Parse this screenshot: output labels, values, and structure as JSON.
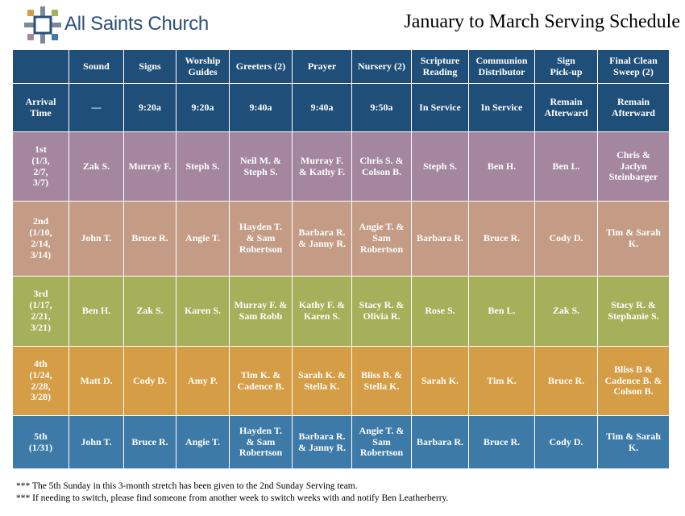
{
  "header": {
    "church_name": "All Saints Church",
    "title": "January to March Serving Schedule"
  },
  "schedule": {
    "columns": [
      "",
      "Sound",
      "Signs",
      "Worship\nGuides",
      "Greeters (2)",
      "Prayer",
      "Nursery (2)",
      "Scripture\nReading",
      "Communion\nDistributor",
      "Sign\nPick-up",
      "Final Clean\nSweep (2)"
    ],
    "arrival": [
      "Arrival\nTime",
      "—",
      "9:20a",
      "9:20a",
      "9:40a",
      "9:40a",
      "9:50a",
      "In Service",
      "In Service",
      "Remain\nAfterward",
      "Remain\nAfterward"
    ],
    "weeks": [
      [
        "1st\n(1/3,\n2/7,\n3/7)",
        "Zak S.",
        "Murray F.",
        "Steph S.",
        "Neil M. &\nSteph S.",
        "Murray F.\n& Kathy F.",
        "Chris S. &\nColson B.",
        "Steph S.",
        "Ben H.",
        "Ben L.",
        "Chris &\nJaclyn\nSteinbarger"
      ],
      [
        "2nd\n(1/10,\n2/14,\n3/14)",
        "John T.",
        "Bruce R.",
        "Angie T.",
        "Hayden T.\n& Sam\nRobertson",
        "Barbara R.\n& Janny R.",
        "Angie T. &\nSam\nRobertson",
        "Barbara R.",
        "Bruce R.",
        "Cody D.",
        "Tim & Sarah\nK."
      ],
      [
        "3rd\n(1/17,\n2/21,\n3/21)",
        "Ben H.",
        "Zak S.",
        "Karen S.",
        "Murray F. &\nSam Robb",
        "Kathy F. &\nKaren S.",
        "Stacy R. &\nOlivia R.",
        "Rose S.",
        "Ben L.",
        "Zak S.",
        "Stacy R. &\nStephanie S."
      ],
      [
        "4th\n(1/24,\n2/28,\n3/28)",
        "Matt D.",
        "Cody D.",
        "Amy P.",
        "Tim K. &\nCadence B.",
        "Sarah K. &\nStella K.",
        "Bliss B. &\nStella K.",
        "Sarah K.",
        "Tim K.",
        "Bruce R.",
        "Bliss B &\nCadence B. &\nColson B."
      ],
      [
        "5th\n(1/31)",
        "John T.",
        "Bruce R.",
        "Angie T.",
        "Hayden T.\n& Sam\nRobertson",
        "Barbara R.\n& Janny R.",
        "Angie T. &\nSam\nRobertson",
        "Barbara R.",
        "Bruce R.",
        "Cody D.",
        "Tim & Sarah\nK."
      ]
    ]
  },
  "notes": [
    "*** The 5th Sunday in this 3-month stretch has been given to the 2nd Sunday Serving team.",
    "*** If needing to switch, please find someone from another week to switch weeks with and notify Ben Leatherberry."
  ],
  "colors": {
    "header_blue": "#1f4e79",
    "week1": "#a4879f",
    "week2": "#c49c85",
    "week3": "#a5b05a",
    "week4": "#d69d47",
    "week5": "#3d7aa8",
    "logo_text": "#2b4f7a"
  },
  "icons": {
    "logo": "cross-logo-icon"
  }
}
